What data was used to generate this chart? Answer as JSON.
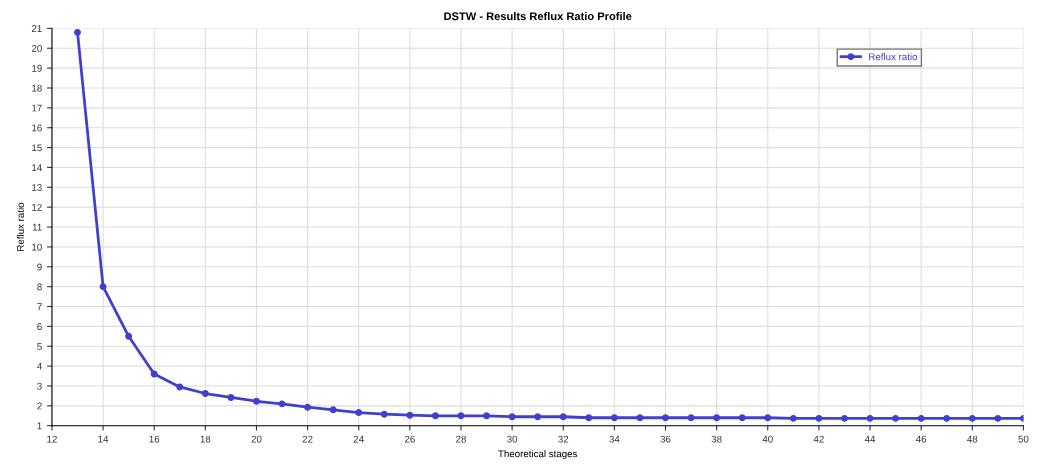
{
  "chart_data": {
    "type": "line",
    "title": "DSTW - Results Reflux Ratio Profile",
    "xlabel": "Theoretical stages",
    "ylabel": "Reflux ratio",
    "x": [
      13,
      14,
      15,
      16,
      17,
      18,
      19,
      20,
      21,
      22,
      23,
      24,
      25,
      26,
      27,
      28,
      29,
      30,
      31,
      32,
      33,
      34,
      35,
      36,
      37,
      38,
      39,
      40,
      41,
      42,
      43,
      44,
      45,
      46,
      47,
      48,
      49,
      50
    ],
    "series": [
      {
        "name": "Reflux ratio",
        "color": "#4040cc",
        "values": [
          20.8,
          8.0,
          5.5,
          3.6,
          2.95,
          2.62,
          2.42,
          2.23,
          2.1,
          1.93,
          1.8,
          1.66,
          1.58,
          1.53,
          1.5,
          1.5,
          1.5,
          1.45,
          1.45,
          1.45,
          1.4,
          1.4,
          1.4,
          1.4,
          1.4,
          1.4,
          1.4,
          1.4,
          1.37,
          1.37,
          1.37,
          1.37,
          1.37,
          1.37,
          1.37,
          1.37,
          1.37,
          1.37
        ]
      }
    ],
    "xlim": [
      12,
      50
    ],
    "xticks": [
      12,
      14,
      16,
      18,
      20,
      22,
      24,
      26,
      28,
      30,
      32,
      34,
      36,
      38,
      40,
      42,
      44,
      46,
      48,
      50
    ],
    "ylim": [
      1,
      21
    ],
    "yticks": [
      1,
      2,
      3,
      4,
      5,
      6,
      7,
      8,
      9,
      10,
      11,
      12,
      13,
      14,
      15,
      16,
      17,
      18,
      19,
      20,
      21
    ],
    "grid": true,
    "legend": "top right",
    "marker": "circle",
    "line_style": "solid"
  }
}
